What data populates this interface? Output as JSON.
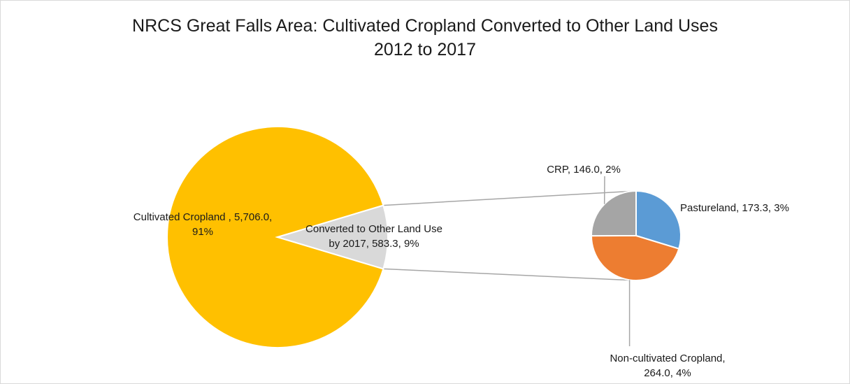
{
  "chart_data": {
    "type": "pie",
    "subtype": "pie-of-pie",
    "title": "NRCS Great Falls Area: Cultivated Cropland Converted to Other Land Uses",
    "subtitle": "2012 to 2017",
    "main_pie": {
      "slices": [
        {
          "label_lines": [
            "Cultivated Cropland , 5,706.0,",
            "91%"
          ],
          "value": 5706.0,
          "percent": 91,
          "color": "#FFC000"
        },
        {
          "label_lines": [
            "Converted to Other Land Use",
            "by 2017, 583.3, 9%"
          ],
          "value": 583.3,
          "percent": 9,
          "color": "#D9D9D9"
        }
      ]
    },
    "secondary_pie": {
      "slices": [
        {
          "label_lines": [
            "Pastureland, 173.3, 3%"
          ],
          "value": 173.3,
          "percent": 3,
          "color": "#5B9BD5"
        },
        {
          "label_lines": [
            "Non-cultivated Cropland,",
            "264.0, 4%"
          ],
          "value": 264.0,
          "percent": 4,
          "color": "#ED7D31"
        },
        {
          "label_lines": [
            "CRP, 146.0, 2%"
          ],
          "value": 146.0,
          "percent": 2,
          "color": "#A5A5A5"
        }
      ]
    },
    "legend": "none",
    "grid": false
  }
}
